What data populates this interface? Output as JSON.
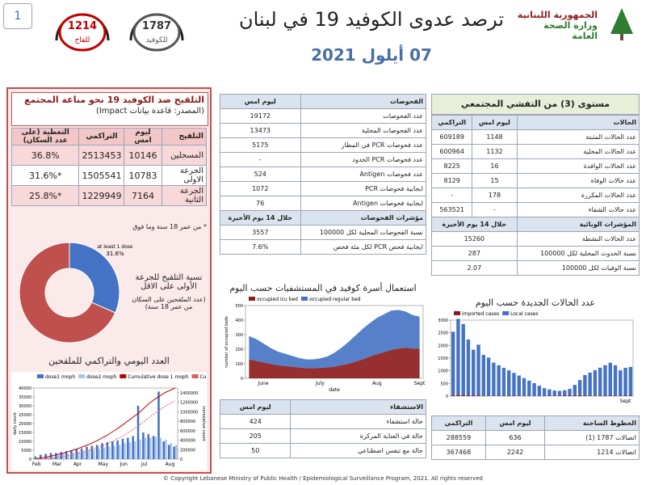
{
  "header": {
    "page_number": "1",
    "title": "ترصد عدوى الكوفيد 19 في لبنان",
    "date": "07 أيلول 2021",
    "ministry": [
      "الجمهورية اللبنانية",
      "وزارة الصحة العامة"
    ],
    "hotlines": [
      {
        "number": "1787",
        "label": "للكوفيد"
      },
      {
        "number": "1214",
        "label": "للقاح"
      }
    ]
  },
  "vaccination": {
    "title": "التلقيح ضد الكوفيد 19  نحو مناعة المجتمع",
    "source": "(المصدر: قاعدة بيانات Impact)",
    "table": {
      "groups": [
        {
          "header": [
            "التلقيح",
            "ليوم امس",
            "التراكمي",
            "التغطية (على عدد السكان)"
          ],
          "rows": [
            [
              "المسجلين",
              "10146",
              "2513453",
              "36.8%"
            ],
            [
              "الجرعة الاولى",
              "10783",
              "1505541",
              "*31.6%"
            ],
            [
              "الجرعة الثانية",
              "7164",
              "1229949",
              "*25.8%"
            ]
          ]
        }
      ]
    },
    "note": "* من عمر 18 سنة وما فوق",
    "donut_caption": "نسبة التلقيح للجرعة الأولى على الاقل",
    "donut_subcaption": "(عدد الملقحين على السكان من عمر 18 سنة)",
    "daily_title": "العدد اليومي والتراكمي للملقحين"
  },
  "tests": {
    "groups": [
      {
        "header": [
          "الفحوصات",
          "ليوم امس"
        ],
        "rows": [
          [
            "عدد الفحوصات",
            "19172"
          ],
          [
            "عدد الفحوصات المحلية",
            "13473"
          ],
          [
            "عدد فحوصات PCR في المطار",
            "5175"
          ],
          [
            "عدد فحوصات PCR الحدود",
            "-"
          ],
          [
            "عدد فحوصات Antigen",
            "524"
          ],
          [
            "ايجابية فحوصات PCR",
            "1072"
          ],
          [
            "ايجابية فحوصات Antigen",
            "76"
          ]
        ]
      },
      {
        "header": [
          "مؤشرات الفحوصات",
          "خلال 14 يوم الأخيرة"
        ],
        "rows": [
          [
            "نسبة الفحوصات المحلية لكل 100000",
            "3557"
          ],
          [
            "ايجابية فحص PCR لكل مئة فحص",
            "7.6%"
          ]
        ]
      }
    ]
  },
  "beds_title": "استعمال أسرة كوفيد في المستشفيات حسب اليوم",
  "hospital": {
    "groups": [
      {
        "header": [
          "الاستشفاء",
          "ليوم امس"
        ],
        "rows": [
          [
            "حالة استشفاء",
            "424"
          ],
          [
            "حالة في العناية المركزة",
            "205"
          ],
          [
            "حالة مع تنفس اصطناعي",
            "50"
          ]
        ]
      }
    ]
  },
  "level_title": "مستوى (3) من التفشي المجتمعي",
  "cases": {
    "groups": [
      {
        "header": [
          "الحالات",
          "ليوم امس",
          "التراكمي"
        ],
        "rows": [
          [
            "عدد الحالات المثبتة",
            "1148",
            "609189"
          ],
          [
            "عدد الحالات المحلية",
            "1132",
            "600964"
          ],
          [
            "عدد الحالات الوافدة",
            "16",
            "8225"
          ],
          [
            "عدد حالات الوفاة",
            "15",
            "8129"
          ],
          [
            "عدد الحالات المكررة",
            "178",
            "-"
          ],
          [
            "عدد حالات الشفاء",
            "-",
            "563521"
          ]
        ]
      },
      {
        "header": [
          "المؤشرات الوبائية",
          "خلال 14 يوم الأخيرة"
        ],
        "rows": [
          [
            "عدد الحالات النشطة",
            "15260"
          ],
          [
            "نسبة الحدوث المحلية لكل 100000",
            "287"
          ],
          [
            "نسبة الوفيات لكل 100000",
            "2.07"
          ]
        ]
      }
    ]
  },
  "new_cases_title": "عدد الحالات الجديدة حسب اليوم",
  "hotline_table": {
    "groups": [
      {
        "header": [
          "الخطوط الساخنة",
          "ليوم امس",
          "التراكمي"
        ],
        "rows": [
          [
            "اتصالات 1787 (1)",
            "636",
            "288559"
          ],
          [
            "اتصالات 1214",
            "2242",
            "367468"
          ]
        ]
      }
    ]
  },
  "footer": "© Copyright Lebanese Ministry of Public Health / Epidemiological Surveillance Program, 2021. All rights reserved",
  "chart_data": [
    {
      "type": "pie",
      "categories": [
        "at least 1 dose",
        null
      ],
      "values": [
        31.6,
        68.4
      ],
      "value_labels": [
        "31.6%",
        null
      ],
      "colors": [
        "#4472c4",
        "#c0504d"
      ],
      "donut": true
    },
    {
      "type": "combo",
      "categories": [
        "Feb",
        null,
        null,
        null,
        "Mar",
        null,
        null,
        null,
        "Apr",
        null,
        null,
        null,
        null,
        "May",
        null,
        null,
        null,
        "Jun",
        null,
        null,
        null,
        "Jul",
        null,
        null,
        null,
        null,
        "Aug",
        null
      ],
      "ylim": [
        0,
        40000
      ],
      "yticks": [
        0,
        5000,
        10000,
        15000,
        20000,
        25000,
        30000,
        35000,
        40000
      ],
      "y_label": "daily count",
      "y2lim": [
        0,
        1500000
      ],
      "y2ticks": [
        0,
        200000,
        400000,
        600000,
        800000,
        1000000,
        1200000,
        1400000
      ],
      "y2_label": "cumulative count",
      "series": [
        {
          "name": "dose1 moph",
          "kind": "bar",
          "color": "#4472c4",
          "values": [
            1500,
            2500,
            3000,
            3500,
            3500,
            4000,
            4500,
            5000,
            5500,
            6000,
            7000,
            7500,
            8000,
            9000,
            9500,
            10000,
            10500,
            11500,
            12000,
            13000,
            30000,
            15000,
            14000,
            13000,
            38000,
            10000,
            8000,
            7000
          ]
        },
        {
          "name": "dose2 moph",
          "kind": "bar",
          "color": "#a9c4e8",
          "values": [
            0,
            0,
            1000,
            1500,
            2500,
            3000,
            3000,
            3500,
            4000,
            4500,
            5000,
            5500,
            6000,
            6500,
            7000,
            7500,
            8000,
            9000,
            9500,
            10000,
            11000,
            12000,
            12000,
            12500,
            12000,
            11000,
            9000,
            8000
          ]
        },
        {
          "name": "Cumulative dose 1 moph",
          "kind": "line",
          "axis": "y2",
          "color": "#c00000",
          "values": [
            10000,
            25000,
            45000,
            70000,
            95000,
            120000,
            150000,
            185000,
            220000,
            260000,
            300000,
            350000,
            400000,
            460000,
            520000,
            590000,
            660000,
            740000,
            820000,
            900000,
            980000,
            1080000,
            1180000,
            1260000,
            1330000,
            1400000,
            1450000,
            1500000
          ]
        },
        {
          "name": "Cumulative dose 2 moph",
          "kind": "line",
          "dashed": true,
          "axis": "y2",
          "color": "#e06060",
          "values": [
            0,
            0,
            5000,
            15000,
            30000,
            50000,
            70000,
            95000,
            120000,
            150000,
            180000,
            215000,
            250000,
            290000,
            335000,
            385000,
            440000,
            500000,
            570000,
            640000,
            720000,
            800000,
            880000,
            960000,
            1040000,
            1110000,
            1170000,
            1230000
          ]
        }
      ]
    },
    {
      "type": "area",
      "stacked": true,
      "categories": [
        null,
        null,
        "June",
        null,
        null,
        null,
        null,
        null,
        null,
        null,
        "July",
        null,
        null,
        null,
        null,
        null,
        null,
        null,
        "Aug",
        null,
        null,
        null,
        null,
        null,
        "Sept"
      ],
      "ylim": [
        0,
        500
      ],
      "yticks": [
        0,
        100,
        200,
        300,
        400,
        500
      ],
      "y_label": "number of occupied beds",
      "x_label": "date",
      "series": [
        {
          "name": "occupied icu bed",
          "color": "#8b1a1a",
          "values": [
            130,
            120,
            110,
            100,
            90,
            85,
            80,
            75,
            70,
            70,
            72,
            75,
            80,
            90,
            100,
            115,
            130,
            150,
            165,
            180,
            195,
            205,
            210,
            205,
            205
          ]
        },
        {
          "name": "occupied regular bed",
          "color": "#4472c4",
          "values": [
            160,
            150,
            130,
            110,
            95,
            85,
            75,
            65,
            60,
            60,
            65,
            75,
            95,
            120,
            150,
            180,
            210,
            230,
            250,
            260,
            270,
            265,
            250,
            230,
            219
          ]
        }
      ]
    },
    {
      "type": "bar",
      "stacked": true,
      "categories": [
        null,
        null,
        null,
        null,
        null,
        null,
        null,
        null,
        null,
        null,
        null,
        null,
        null,
        null,
        null,
        null,
        null,
        null,
        null,
        null,
        null,
        null,
        null,
        null,
        null,
        null,
        null,
        null,
        null,
        null,
        null,
        null,
        null,
        null,
        "Sept",
        null
      ],
      "ylim": [
        0,
        3000
      ],
      "yticks": [
        0,
        500,
        1000,
        1500,
        2000,
        2500,
        3000
      ],
      "series": [
        {
          "name": "imported cases",
          "color": "#8b1a1a",
          "values": [
            40,
            50,
            45,
            35,
            30,
            30,
            25,
            20,
            20,
            18,
            15,
            15,
            15,
            12,
            12,
            10,
            10,
            10,
            12,
            15,
            20,
            25,
            30,
            35,
            40,
            35,
            30,
            25,
            20,
            20,
            18,
            16,
            15,
            15,
            16,
            16
          ]
        },
        {
          "name": "Local cases",
          "color": "#4472c4",
          "values": [
            2500,
            3000,
            2800,
            2200,
            1800,
            2000,
            1600,
            1500,
            1300,
            1200,
            1100,
            1000,
            900,
            800,
            700,
            600,
            500,
            400,
            300,
            250,
            200,
            180,
            200,
            250,
            400,
            600,
            800,
            900,
            1000,
            1100,
            1200,
            1300,
            1200,
            1000,
            1100,
            1132
          ]
        }
      ]
    }
  ]
}
